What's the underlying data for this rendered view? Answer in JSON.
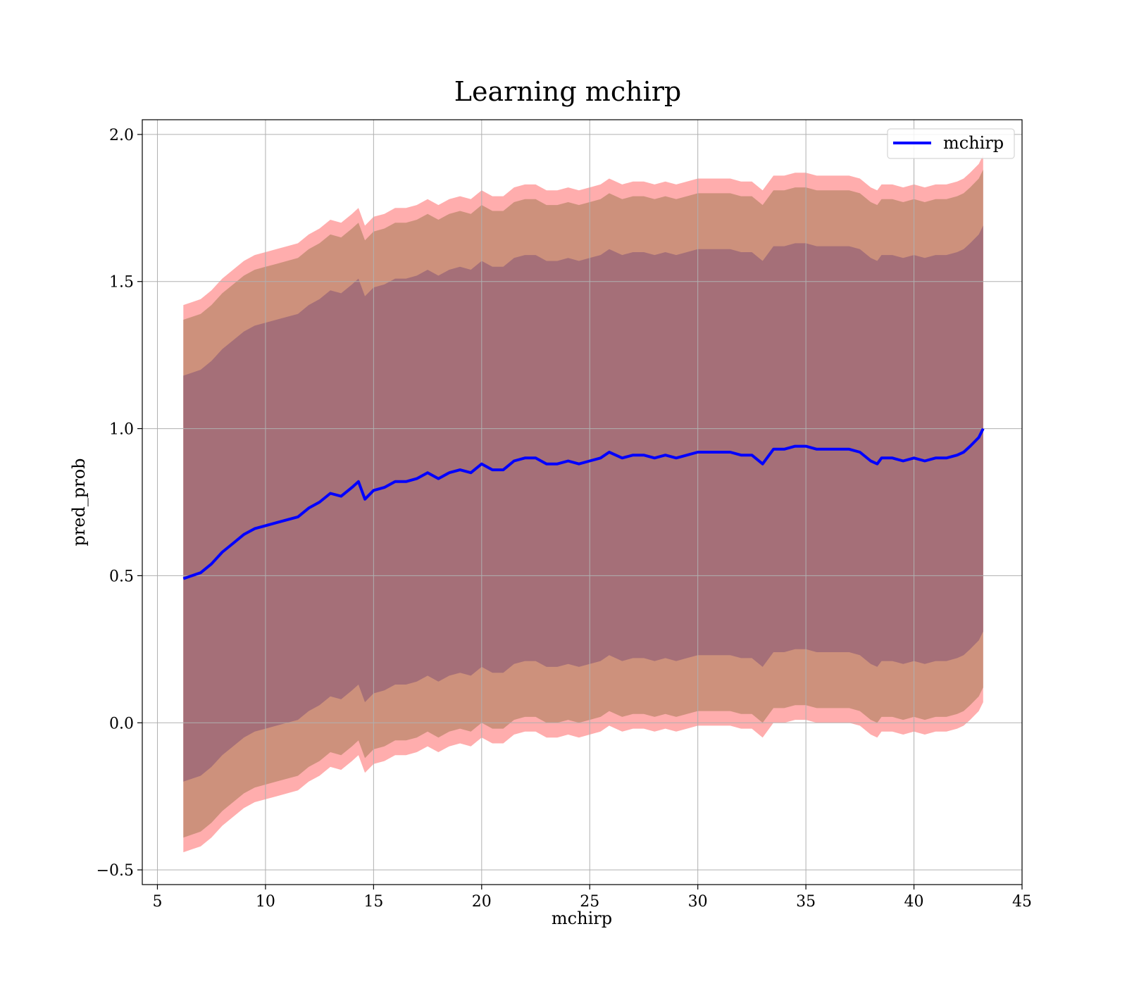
{
  "chart_data": {
    "type": "line",
    "title": "Learning mchirp",
    "xlabel": "mchirp",
    "ylabel": "pred_prob",
    "xlim": [
      4.3,
      45
    ],
    "ylim": [
      -0.55,
      2.05
    ],
    "xticks": [
      5,
      10,
      15,
      20,
      25,
      30,
      35,
      40,
      45
    ],
    "yticks": [
      -0.5,
      0.0,
      0.5,
      1.0,
      1.5,
      2.0
    ],
    "xtick_labels": [
      "5",
      "10",
      "15",
      "20",
      "25",
      "30",
      "35",
      "40",
      "45"
    ],
    "ytick_labels": [
      "−0.5",
      "0.0",
      "0.5",
      "1.0",
      "1.5",
      "2.0"
    ],
    "grid": true,
    "legend": {
      "position": "top-right",
      "entries": [
        "mchirp"
      ]
    },
    "colors": {
      "line": "#0000ff",
      "band_outer": "#ff9999",
      "band_middle": "#c08a6f",
      "band_inner": "#9e6878",
      "grid": "#b0b0b0"
    },
    "x": [
      6.2,
      6.6,
      7.0,
      7.5,
      8.0,
      8.5,
      9.0,
      9.5,
      10.0,
      10.5,
      11.0,
      11.5,
      12.0,
      12.5,
      13.0,
      13.5,
      14.0,
      14.3,
      14.6,
      15.0,
      15.5,
      16.0,
      16.5,
      17.0,
      17.5,
      18.0,
      18.5,
      19.0,
      19.5,
      20.0,
      20.5,
      21.0,
      21.5,
      22.0,
      22.5,
      23.0,
      23.5,
      24.0,
      24.5,
      25.0,
      25.5,
      25.9,
      26.5,
      27.0,
      27.5,
      28.0,
      28.5,
      29.0,
      29.5,
      30.0,
      30.5,
      31.0,
      31.5,
      32.0,
      32.5,
      33.0,
      33.5,
      34.0,
      34.5,
      35.0,
      35.5,
      36.0,
      36.5,
      37.0,
      37.5,
      38.0,
      38.3,
      38.5,
      39.0,
      39.5,
      40.0,
      40.5,
      41.0,
      41.5,
      42.0,
      42.3,
      42.6,
      43.0,
      43.2
    ],
    "series": [
      {
        "name": "mchirp",
        "values": [
          0.49,
          0.5,
          0.51,
          0.54,
          0.58,
          0.61,
          0.64,
          0.66,
          0.67,
          0.68,
          0.69,
          0.7,
          0.73,
          0.75,
          0.78,
          0.77,
          0.8,
          0.82,
          0.76,
          0.79,
          0.8,
          0.82,
          0.82,
          0.83,
          0.85,
          0.83,
          0.85,
          0.86,
          0.85,
          0.88,
          0.86,
          0.86,
          0.89,
          0.9,
          0.9,
          0.88,
          0.88,
          0.89,
          0.88,
          0.89,
          0.9,
          0.92,
          0.9,
          0.91,
          0.91,
          0.9,
          0.91,
          0.9,
          0.91,
          0.92,
          0.92,
          0.92,
          0.92,
          0.91,
          0.91,
          0.88,
          0.93,
          0.93,
          0.94,
          0.94,
          0.93,
          0.93,
          0.93,
          0.93,
          0.92,
          0.89,
          0.88,
          0.9,
          0.9,
          0.89,
          0.9,
          0.89,
          0.9,
          0.9,
          0.91,
          0.92,
          0.94,
          0.97,
          1.0
        ]
      }
    ],
    "bands": [
      {
        "level": "outer",
        "upper_offset": 0.93,
        "lower_offset": 0.93
      },
      {
        "level": "middle",
        "upper_offset": 0.88,
        "lower_offset": 0.88
      },
      {
        "level": "inner",
        "upper_offset": 0.69,
        "lower_offset": 0.69
      }
    ]
  }
}
